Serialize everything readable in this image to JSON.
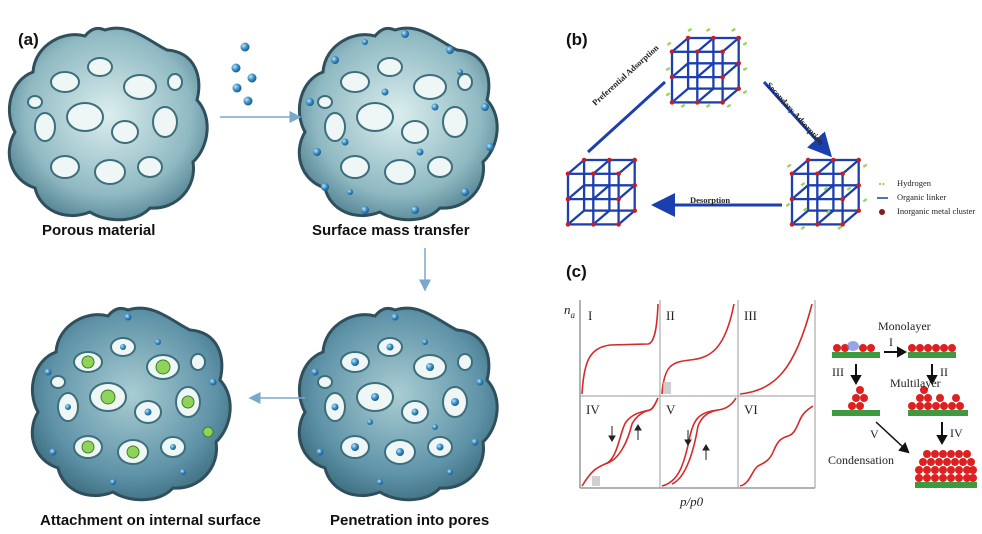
{
  "panel_a": {
    "label": "(a)",
    "stages": {
      "porous": "Porous material",
      "surface": "Surface mass transfer",
      "penetration": "Penetration into pores",
      "attachment": "Attachment on internal surface"
    }
  },
  "panel_b": {
    "label": "(b)",
    "arrows": {
      "preferential": "Preferential Adsorption",
      "secondary": "Secondary Adsorption",
      "desorption": "Desorption"
    },
    "legend": {
      "hydrogen": "Hydrogen",
      "linker": "Organic linker",
      "cluster": "Inorganic metal cluster"
    }
  },
  "panel_c": {
    "label": "(c)",
    "ylabel": "n",
    "ylabel_sub": "a",
    "xlabel": "p/p0",
    "isotherms": [
      "I",
      "II",
      "III",
      "IV",
      "V",
      "VI"
    ],
    "mechanism": {
      "monolayer": "Monolayer",
      "multilayer": "Multilayer",
      "condensation": "Condensation",
      "steps": [
        "I",
        "II",
        "III",
        "IV",
        "V"
      ]
    }
  },
  "colors": {
    "arrow": "#7aa7cc",
    "lattice": "#1c3fb0",
    "node": "#c0202a",
    "hydrogen": "#9bd35a",
    "curve": "#d62a2a",
    "molecule": "#e02020",
    "substrate": "#3f9a3f",
    "material": "#5f93a8",
    "bubble": "#3b90c8"
  }
}
